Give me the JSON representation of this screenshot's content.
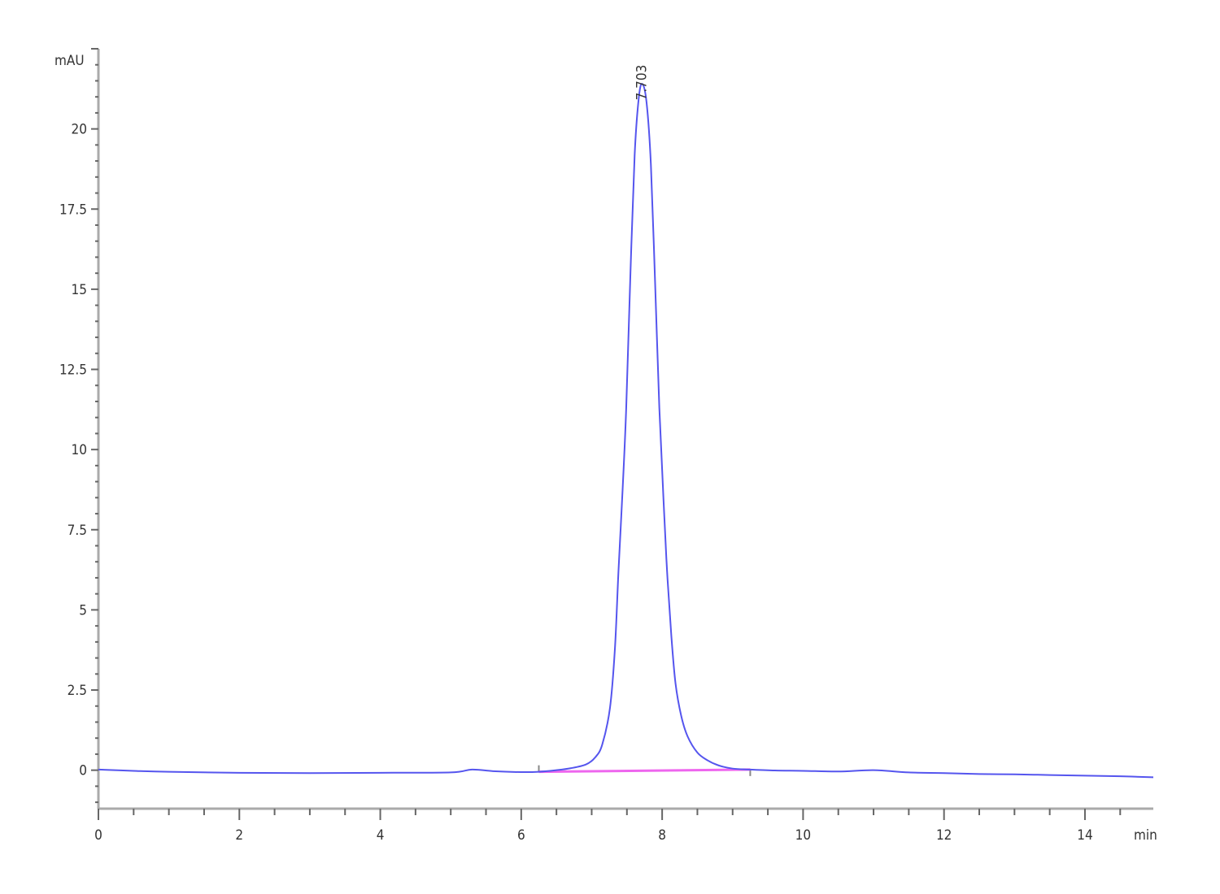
{
  "chart_data": {
    "type": "line",
    "title": "",
    "ylabel": "mAU",
    "xlabel": "min",
    "xlim": [
      0,
      14.97
    ],
    "ylim": [
      -1.2,
      22.5
    ],
    "x_ticks_major": [
      0,
      2,
      4,
      6,
      8,
      10,
      12,
      14
    ],
    "x_tick_labels": [
      "0",
      "2",
      "4",
      "6",
      "8",
      "10",
      "12",
      "14"
    ],
    "y_ticks_major": [
      0,
      2.5,
      5,
      7.5,
      10,
      12.5,
      15,
      17.5,
      20
    ],
    "y_tick_labels": [
      "0",
      "2.5",
      "5",
      "7.5",
      "10",
      "12.5",
      "15",
      "17.5",
      "20"
    ],
    "grid": false,
    "series": [
      {
        "color": "#5555ee",
        "x": [
          0,
          0.5,
          1,
          2,
          3,
          4,
          5,
          5.3,
          5.6,
          6,
          6.25,
          6.5,
          6.7,
          6.92,
          7.05,
          7.15,
          7.26,
          7.33,
          7.38,
          7.44,
          7.49,
          7.55,
          7.61,
          7.67,
          7.72,
          7.78,
          7.84,
          7.9,
          7.96,
          8.02,
          8.07,
          8.13,
          8.19,
          8.27,
          8.36,
          8.5,
          8.65,
          8.8,
          9.0,
          9.25,
          9.6,
          10,
          10.5,
          11,
          11.5,
          12,
          12.5,
          13,
          13.5,
          14,
          14.5,
          14.97
        ],
        "y": [
          0.02,
          -0.02,
          -0.05,
          -0.08,
          -0.09,
          -0.08,
          -0.07,
          0.02,
          -0.03,
          -0.06,
          -0.05,
          0.0,
          0.06,
          0.18,
          0.4,
          0.8,
          1.95,
          3.8,
          6.2,
          8.8,
          11.3,
          15.5,
          19.2,
          21.0,
          21.4,
          20.8,
          18.9,
          15.2,
          11.3,
          8.4,
          6.2,
          4.2,
          2.7,
          1.7,
          1.06,
          0.55,
          0.3,
          0.15,
          0.05,
          0.02,
          -0.01,
          -0.02,
          -0.04,
          0.0,
          -0.07,
          -0.09,
          -0.12,
          -0.13,
          -0.15,
          -0.17,
          -0.19,
          -0.22
        ]
      }
    ],
    "integration_baseline": {
      "color": "#ee66ee",
      "x": [
        6.25,
        9.25
      ],
      "y": [
        -0.05,
        0.02
      ]
    },
    "annotations": [
      {
        "text": "7.703",
        "x": 7.703,
        "y": 21.4
      }
    ]
  }
}
